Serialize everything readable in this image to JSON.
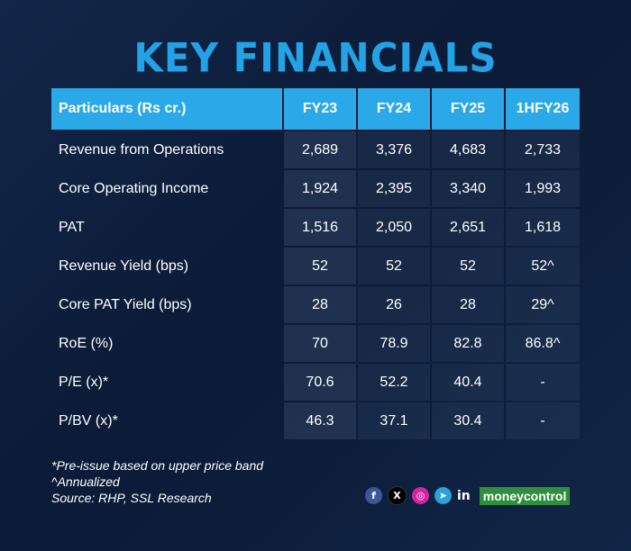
{
  "title": "KEY FINANCIALS",
  "table": {
    "headers": [
      "Particulars (Rs cr.)",
      "FY23",
      "FY24",
      "FY25",
      "1HFY26"
    ],
    "rows": [
      [
        "Revenue from Operations",
        "2,689",
        "3,376",
        "4,683",
        "2,733"
      ],
      [
        "Core Operating Income",
        "1,924",
        "2,395",
        "3,340",
        "1,993"
      ],
      [
        "PAT",
        "1,516",
        "2,050",
        "2,651",
        "1,618"
      ],
      [
        "Revenue Yield (bps)",
        "52",
        "52",
        "52",
        "52^"
      ],
      [
        "Core PAT Yield (bps)",
        "28",
        "26",
        "28",
        "29^"
      ],
      [
        "RoE (%)",
        "70",
        "78.9",
        "82.8",
        "86.8^"
      ],
      [
        "P/E (x)*",
        "70.6",
        "52.2",
        "40.4",
        "-"
      ],
      [
        "P/BV (x)*",
        "46.3",
        "37.1",
        "30.4",
        "-"
      ]
    ]
  },
  "footnotes": [
    "*Pre-issue based on upper price band",
    "^Annualized",
    "Source: RHP, SSL Research"
  ],
  "social": {
    "icons": [
      "facebook-icon",
      "x-icon",
      "instagram-icon",
      "telegram-icon",
      "linkedin-icon"
    ],
    "glyphs": [
      "f",
      "X",
      "◎",
      "➤",
      "in"
    ],
    "brand": "moneycontrol"
  }
}
